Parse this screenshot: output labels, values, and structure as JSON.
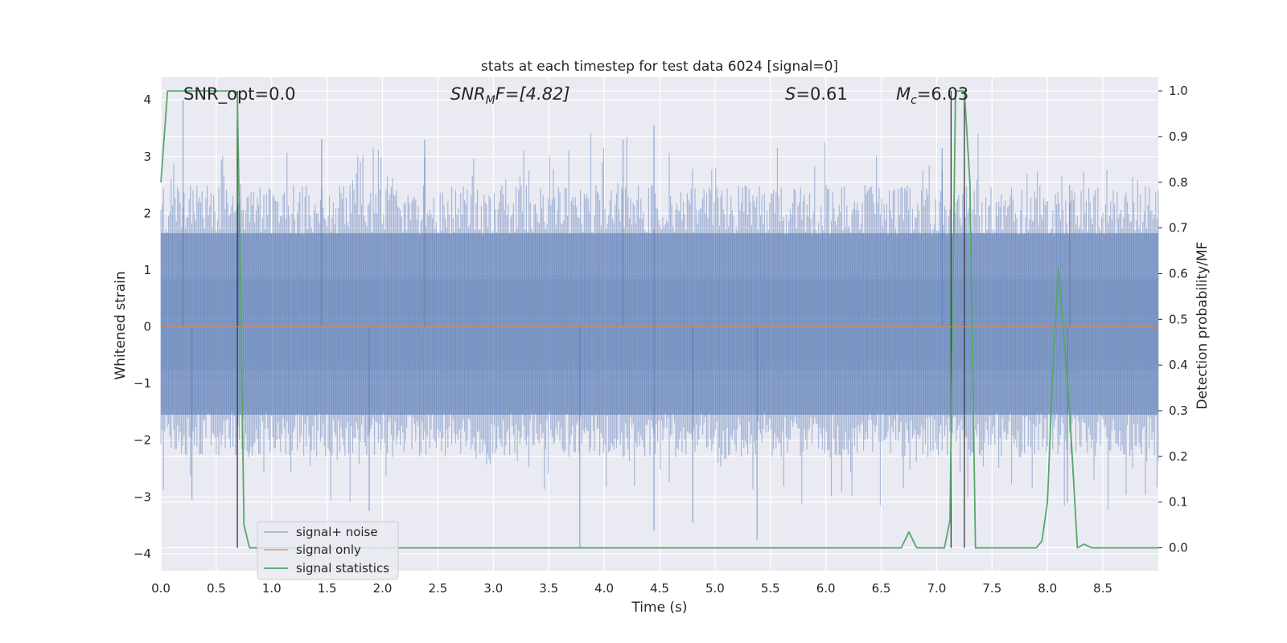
{
  "chart_data": {
    "type": "line",
    "title": "stats at each timestep for test data 6024 [signal=0]",
    "xlabel": "Time (s)",
    "ylabel": "Whitened strain",
    "y2label": "Detection probability/MF",
    "xlim": [
      0.0,
      9.0
    ],
    "ylim": [
      -4.3,
      4.4
    ],
    "y2lim": [
      -0.05,
      1.03
    ],
    "xticks": [
      "0.0",
      "0.5",
      "1.0",
      "1.5",
      "2.0",
      "2.5",
      "3.0",
      "3.5",
      "4.0",
      "4.5",
      "5.0",
      "5.5",
      "6.0",
      "6.5",
      "7.0",
      "7.5",
      "8.0",
      "8.5"
    ],
    "yticks": [
      "4",
      "3",
      "2",
      "1",
      "0",
      "−1",
      "−2",
      "−3",
      "−4"
    ],
    "y2ticks": [
      "1.0",
      "0.9",
      "0.8",
      "0.7",
      "0.6",
      "0.5",
      "0.4",
      "0.3",
      "0.2",
      "0.1",
      "0.0"
    ],
    "grid": true,
    "legend_position": "lower-left",
    "annotations": {
      "snr_opt": "SNR_opt=0.0",
      "snr_mf_sym": "SNR",
      "snr_mf_sub": "M",
      "snr_mf_rest": "F=[4.82]",
      "s_sym": "S",
      "s_rest": "=0.61",
      "mc_sym": "M",
      "mc_sub": "c",
      "mc_rest": "=6.03"
    },
    "vertical_markers_x": [
      0.69,
      7.13,
      7.25
    ],
    "series": [
      {
        "name": "signal+ noise",
        "color": "#4c72b0",
        "axis": "left",
        "kind": "noise",
        "x_range": [
          0.0,
          9.0
        ],
        "outer_band": [
          -1.55,
          1.65
        ],
        "core_band": [
          -0.75,
          0.85
        ],
        "spikes": [
          {
            "x": 0.2,
            "y": 4.0
          },
          {
            "x": 0.28,
            "y": -2.6
          },
          {
            "x": 0.28,
            "y": -3.05
          },
          {
            "x": 0.7,
            "y": 2.2
          },
          {
            "x": 1.45,
            "y": 3.3
          },
          {
            "x": 1.88,
            "y": -3.25
          },
          {
            "x": 2.38,
            "y": 3.3
          },
          {
            "x": 3.78,
            "y": -3.9
          },
          {
            "x": 4.17,
            "y": 3.3
          },
          {
            "x": 4.45,
            "y": 3.55
          },
          {
            "x": 4.45,
            "y": -3.6
          },
          {
            "x": 4.8,
            "y": -3.45
          },
          {
            "x": 5.38,
            "y": -3.75
          },
          {
            "x": 7.05,
            "y": 3.15
          },
          {
            "x": 8.18,
            "y": -3.1
          },
          {
            "x": 8.2,
            "y": 2.5
          }
        ]
      },
      {
        "name": "signal only",
        "color": "#dd8452",
        "axis": "left",
        "x": [
          0.0,
          9.0
        ],
        "y": [
          0.0,
          0.0
        ]
      },
      {
        "name": "signal statistics",
        "color": "#55a868",
        "axis": "right",
        "x": [
          0.0,
          0.06,
          0.12,
          0.2,
          0.4,
          0.6,
          0.67,
          0.69,
          0.72,
          0.75,
          0.8,
          0.85,
          1.0,
          2.0,
          3.0,
          4.0,
          5.0,
          6.0,
          6.6,
          6.68,
          6.75,
          6.82,
          6.9,
          7.0,
          7.07,
          7.12,
          7.17,
          7.2,
          7.25,
          7.3,
          7.35,
          7.4,
          7.5,
          7.9,
          7.95,
          8.0,
          8.05,
          8.1,
          8.2,
          8.27,
          8.33,
          8.4,
          9.0
        ],
        "y": [
          0.8,
          1.0,
          1.0,
          1.0,
          1.0,
          1.0,
          1.0,
          0.99,
          0.55,
          0.05,
          0.0,
          0.0,
          0.0,
          0.0,
          0.0,
          0.0,
          0.0,
          0.0,
          0.0,
          0.0,
          0.035,
          0.0,
          0.0,
          0.0,
          0.0,
          0.06,
          1.0,
          1.0,
          1.0,
          0.8,
          0.0,
          0.0,
          0.0,
          0.0,
          0.015,
          0.1,
          0.4,
          0.61,
          0.3,
          0.0,
          0.008,
          0.0,
          0.0
        ]
      }
    ]
  }
}
